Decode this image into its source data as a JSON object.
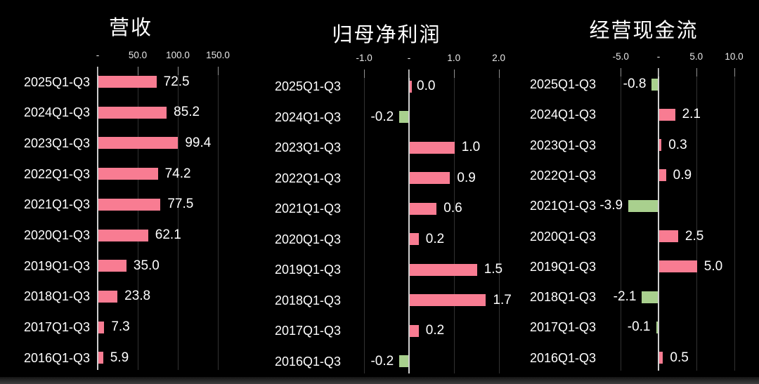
{
  "window": {
    "background": "#000000",
    "bottom_edge_color": "#3f3f3f"
  },
  "chart_data": [
    {
      "type": "bar",
      "orientation": "horizontal",
      "title": "营收",
      "categories": [
        "2025Q1-Q3",
        "2024Q1-Q3",
        "2023Q1-Q3",
        "2022Q1-Q3",
        "2021Q1-Q3",
        "2020Q1-Q3",
        "2019Q1-Q3",
        "2018Q1-Q3",
        "2017Q1-Q3",
        "2016Q1-Q3"
      ],
      "values": [
        72.5,
        85.2,
        99.4,
        74.2,
        77.5,
        62.1,
        35.0,
        23.8,
        7.3,
        5.9
      ],
      "value_labels": [
        "72.5",
        "85.2",
        "99.4",
        "74.2",
        "77.5",
        "62.1",
        "35.0",
        "23.8",
        "7.3",
        "5.9"
      ],
      "axis": {
        "min": 0,
        "max": 165,
        "ticks": [
          {
            "value": 0,
            "label": "-"
          },
          {
            "value": 50,
            "label": "50.0"
          },
          {
            "value": 100,
            "label": "100.0"
          },
          {
            "value": 150,
            "label": "150.0"
          }
        ]
      },
      "grid": true,
      "positive_color": "#F87C92",
      "negative_color": "#A9D08E"
    },
    {
      "type": "bar",
      "orientation": "horizontal",
      "title": "归母净利润",
      "categories": [
        "2025Q1-Q3",
        "2024Q1-Q3",
        "2023Q1-Q3",
        "2022Q1-Q3",
        "2021Q1-Q3",
        "2020Q1-Q3",
        "2019Q1-Q3",
        "2018Q1-Q3",
        "2017Q1-Q3",
        "2016Q1-Q3"
      ],
      "values": [
        0.0,
        -0.2,
        1.0,
        0.9,
        0.6,
        0.2,
        1.5,
        1.7,
        0.2,
        -0.2
      ],
      "value_labels": [
        "0.0",
        "-0.2",
        "1.0",
        "0.9",
        "0.6",
        "0.2",
        "1.5",
        "1.7",
        "0.2",
        "-0.2"
      ],
      "axis": {
        "min": -1.3,
        "max": 2.3,
        "ticks": [
          {
            "value": -1.0,
            "label": "-1.0"
          },
          {
            "value": 0,
            "label": "-"
          },
          {
            "value": 1.0,
            "label": "1.0"
          },
          {
            "value": 2.0,
            "label": "2.0"
          }
        ]
      },
      "grid": true,
      "positive_color": "#F87C92",
      "negative_color": "#A9D08E"
    },
    {
      "type": "bar",
      "orientation": "horizontal",
      "title": "经营现金流",
      "categories": [
        "2025Q1-Q3",
        "2024Q1-Q3",
        "2023Q1-Q3",
        "2022Q1-Q3",
        "2021Q1-Q3",
        "2020Q1-Q3",
        "2019Q1-Q3",
        "2018Q1-Q3",
        "2017Q1-Q3",
        "2016Q1-Q3"
      ],
      "values": [
        -0.8,
        2.1,
        0.3,
        0.9,
        -3.9,
        2.5,
        5.0,
        -2.1,
        -0.1,
        0.5
      ],
      "value_labels": [
        "-0.8",
        "2.1",
        "0.3",
        "0.9",
        "-3.9",
        "2.5",
        "5.0",
        "-2.1",
        "-0.1",
        "0.5"
      ],
      "axis": {
        "min": -6.5,
        "max": 11,
        "ticks": [
          {
            "value": -5.0,
            "label": "-5.0"
          },
          {
            "value": 0,
            "label": "-"
          },
          {
            "value": 5.0,
            "label": "5.0"
          },
          {
            "value": 10.0,
            "label": "10.0"
          }
        ]
      },
      "grid": true,
      "positive_color": "#F87C92",
      "negative_color": "#A9D08E"
    }
  ]
}
